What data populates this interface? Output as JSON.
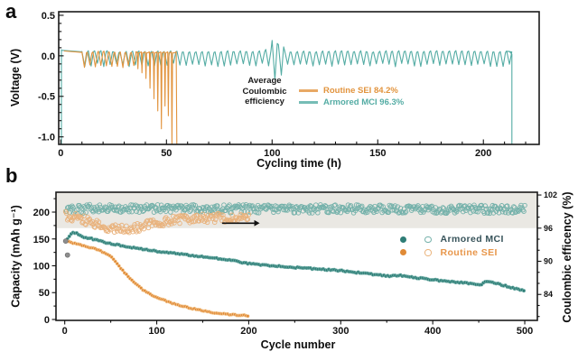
{
  "panels": {
    "a": {
      "letter": "a"
    },
    "b": {
      "letter": "b"
    }
  },
  "colors": {
    "armored_teal": "#54aca4",
    "armored_dark": "#2e7d76",
    "routine_orange": "#e2943e",
    "routine_light": "#f0b377",
    "axis_black": "#1a1a1a",
    "ce_band_gray": "#eae8e3",
    "background": "#ffffff"
  },
  "chart_data": [
    {
      "panel": "a",
      "type": "line",
      "xlabel": "Cycling time (h)",
      "ylabel": "Voltage (V)",
      "xlim": [
        -1,
        226.4
      ],
      "ylim": [
        -1.093,
        0.544
      ],
      "xticks": [
        0,
        50,
        100,
        150,
        200
      ],
      "x_minor_step": 10,
      "yticks": [
        0.5,
        0,
        -0.5,
        -1
      ],
      "ytick_labels": [
        "0.5",
        "0.0",
        "-0.5",
        "-1.0"
      ],
      "grid": false,
      "tick_direction": "in",
      "annotation": [
        "Average",
        "Coulombic",
        "efficiency"
      ],
      "legend": [
        {
          "label": "Routine SEI 84.2%",
          "color": "#e2943e"
        },
        {
          "label": "Armored MCI 96.3%",
          "color": "#54aca4"
        }
      ],
      "series": [
        {
          "name": "Armored MCI",
          "color": "#54aca4",
          "init_rise": {
            "t": 0.3,
            "from": -1.09,
            "to": 0.075
          },
          "plateau": [
            [
              0.3,
              0.068
            ],
            [
              10,
              0.05
            ]
          ],
          "osc": {
            "t0": 10,
            "t1": 211.5,
            "period": 3,
            "top": 0.055,
            "bottom": -0.09
          },
          "disturbance": {
            "t0": 95,
            "t1": 107,
            "top": 0.22,
            "bottom": -0.32
          },
          "end_drop": {
            "t": 213.5,
            "to": -1.09
          }
        },
        {
          "name": "Routine SEI",
          "color": "#e2943e",
          "plateau": [
            [
              1.5,
              0.06
            ],
            [
              10,
              0.042
            ]
          ],
          "osc": {
            "t0": 10,
            "t1": 35.5,
            "period": 2.6,
            "top": 0.05,
            "bottom": -0.105
          },
          "spike_top": 0.05,
          "spikes": [
            [
              36.5,
              -0.16
            ],
            [
              38.4,
              -0.21
            ],
            [
              40.3,
              -0.28
            ],
            [
              42.2,
              -0.4
            ],
            [
              44.1,
              -0.53
            ],
            [
              45.9,
              -0.68
            ],
            [
              47.6,
              -0.9
            ],
            [
              49.3,
              -0.62
            ],
            [
              50.9,
              -0.74
            ],
            [
              52.6,
              -1.09
            ],
            [
              54.9,
              -1.09
            ]
          ]
        }
      ]
    },
    {
      "panel": "b",
      "type": "scatter",
      "xlabel": "Cycle number",
      "ylabel_left": "Capacity (mAh g⁻¹)",
      "ylabel_right": "Coulombic efficency (%)",
      "xlim": [
        -9.5,
        513.7
      ],
      "xticks": [
        0,
        100,
        200,
        300,
        400,
        500
      ],
      "x_minor_step": 50,
      "ylim_left": [
        -1.7,
        237
      ],
      "yticks_left": [
        0,
        50,
        100,
        150,
        200
      ],
      "y_minor_step_left": 25,
      "ylim_right": [
        79.3,
        102.5
      ],
      "yticks_right": [
        84,
        90,
        96,
        102
      ],
      "y_minor_step_right": 2,
      "tick_direction": "out",
      "ce_band": {
        "from": 96,
        "to": 102.5,
        "color": "#eae8e3"
      },
      "arrow": {
        "x0": 171,
        "x1": 206,
        "y": 96.9,
        "color": "#111111"
      },
      "legend": [
        {
          "label": "Armored  MCI",
          "text_color": "#37535a",
          "fill_color": "#2e7d76",
          "open_color": "#74b1aa"
        },
        {
          "label": "Routine SEI",
          "text_color": "#e8964a",
          "fill_color": "#e08a36",
          "open_color": "#eab27a"
        }
      ],
      "series": [
        {
          "name": "Armored MCI capacity",
          "kind": "capacity",
          "axis": "left",
          "color": "#2e7d76",
          "edge": "#74b1aa",
          "sample_step": 2,
          "jitter": 1.1,
          "points": [
            [
              3,
              149
            ],
            [
              5,
              155
            ],
            [
              8,
              162
            ],
            [
              12,
              161
            ],
            [
              20,
              154
            ],
            [
              30,
              150
            ],
            [
              45,
              143
            ],
            [
              60,
              138
            ],
            [
              80,
              132
            ],
            [
              100,
              127
            ],
            [
              125,
              122
            ],
            [
              150,
              117
            ],
            [
              175,
              112
            ],
            [
              200,
              104
            ],
            [
              225,
              100
            ],
            [
              250,
              97
            ],
            [
              275,
              94
            ],
            [
              300,
              91
            ],
            [
              325,
              86
            ],
            [
              350,
              81
            ],
            [
              365,
              82
            ],
            [
              385,
              77
            ],
            [
              400,
              74
            ],
            [
              415,
              71
            ],
            [
              430,
              69
            ],
            [
              445,
              66
            ],
            [
              452,
              64
            ],
            [
              458,
              72
            ],
            [
              465,
              69
            ],
            [
              478,
              63
            ],
            [
              488,
              58
            ],
            [
              500,
              54
            ]
          ]
        },
        {
          "name": "Routine SEI capacity",
          "kind": "capacity",
          "axis": "left",
          "color": "#e08a36",
          "edge": "#f6d0a0",
          "sample_step": 2,
          "jitter": 0.9,
          "points": [
            [
              1,
              146
            ],
            [
              10,
              142
            ],
            [
              20,
              138
            ],
            [
              30,
              133
            ],
            [
              40,
              127
            ],
            [
              45,
              122
            ],
            [
              50,
              117
            ],
            [
              55,
              109
            ],
            [
              60,
              97
            ],
            [
              68,
              82
            ],
            [
              76,
              68
            ],
            [
              85,
              55
            ],
            [
              95,
              45
            ],
            [
              105,
              38
            ],
            [
              115,
              31
            ],
            [
              130,
              24
            ],
            [
              145,
              18
            ],
            [
              160,
              13
            ],
            [
              175,
              10
            ],
            [
              190,
              8
            ],
            [
              200,
              7
            ]
          ]
        },
        {
          "name": "Armored MCI coulombic efficiency",
          "kind": "ce",
          "axis": "right",
          "color": "#74b1aa",
          "sample_step": 1,
          "jitter": 0.75,
          "radius": 2.3,
          "range": [
            1,
            500
          ],
          "profile": [
            [
              1,
              99.2
            ],
            [
              30,
              99.6
            ],
            [
              250,
              99.5
            ],
            [
              500,
              99.4
            ]
          ]
        },
        {
          "name": "Routine SEI coulombic efficiency",
          "kind": "ce",
          "axis": "right",
          "color": "#e9b27c",
          "sample_step": 1,
          "jitter": 0.8,
          "radius": 2.3,
          "range": [
            1,
            200
          ],
          "profile": [
            [
              1,
              98.2
            ],
            [
              20,
              97.6
            ],
            [
              35,
              96.6
            ],
            [
              50,
              95.9
            ],
            [
              65,
              95.7
            ],
            [
              80,
              96.2
            ],
            [
              95,
              96.9
            ],
            [
              115,
              97.4
            ],
            [
              140,
              97.7
            ],
            [
              170,
              97.9
            ],
            [
              200,
              97.9
            ]
          ]
        },
        {
          "name": "activation points",
          "kind": "dots",
          "axis": "left",
          "color": "#8d8d8d",
          "edge": "#6a6a6a",
          "radius": 2.6,
          "points": [
            [
              1,
              146
            ],
            [
              3,
              120
            ]
          ]
        }
      ]
    }
  ]
}
